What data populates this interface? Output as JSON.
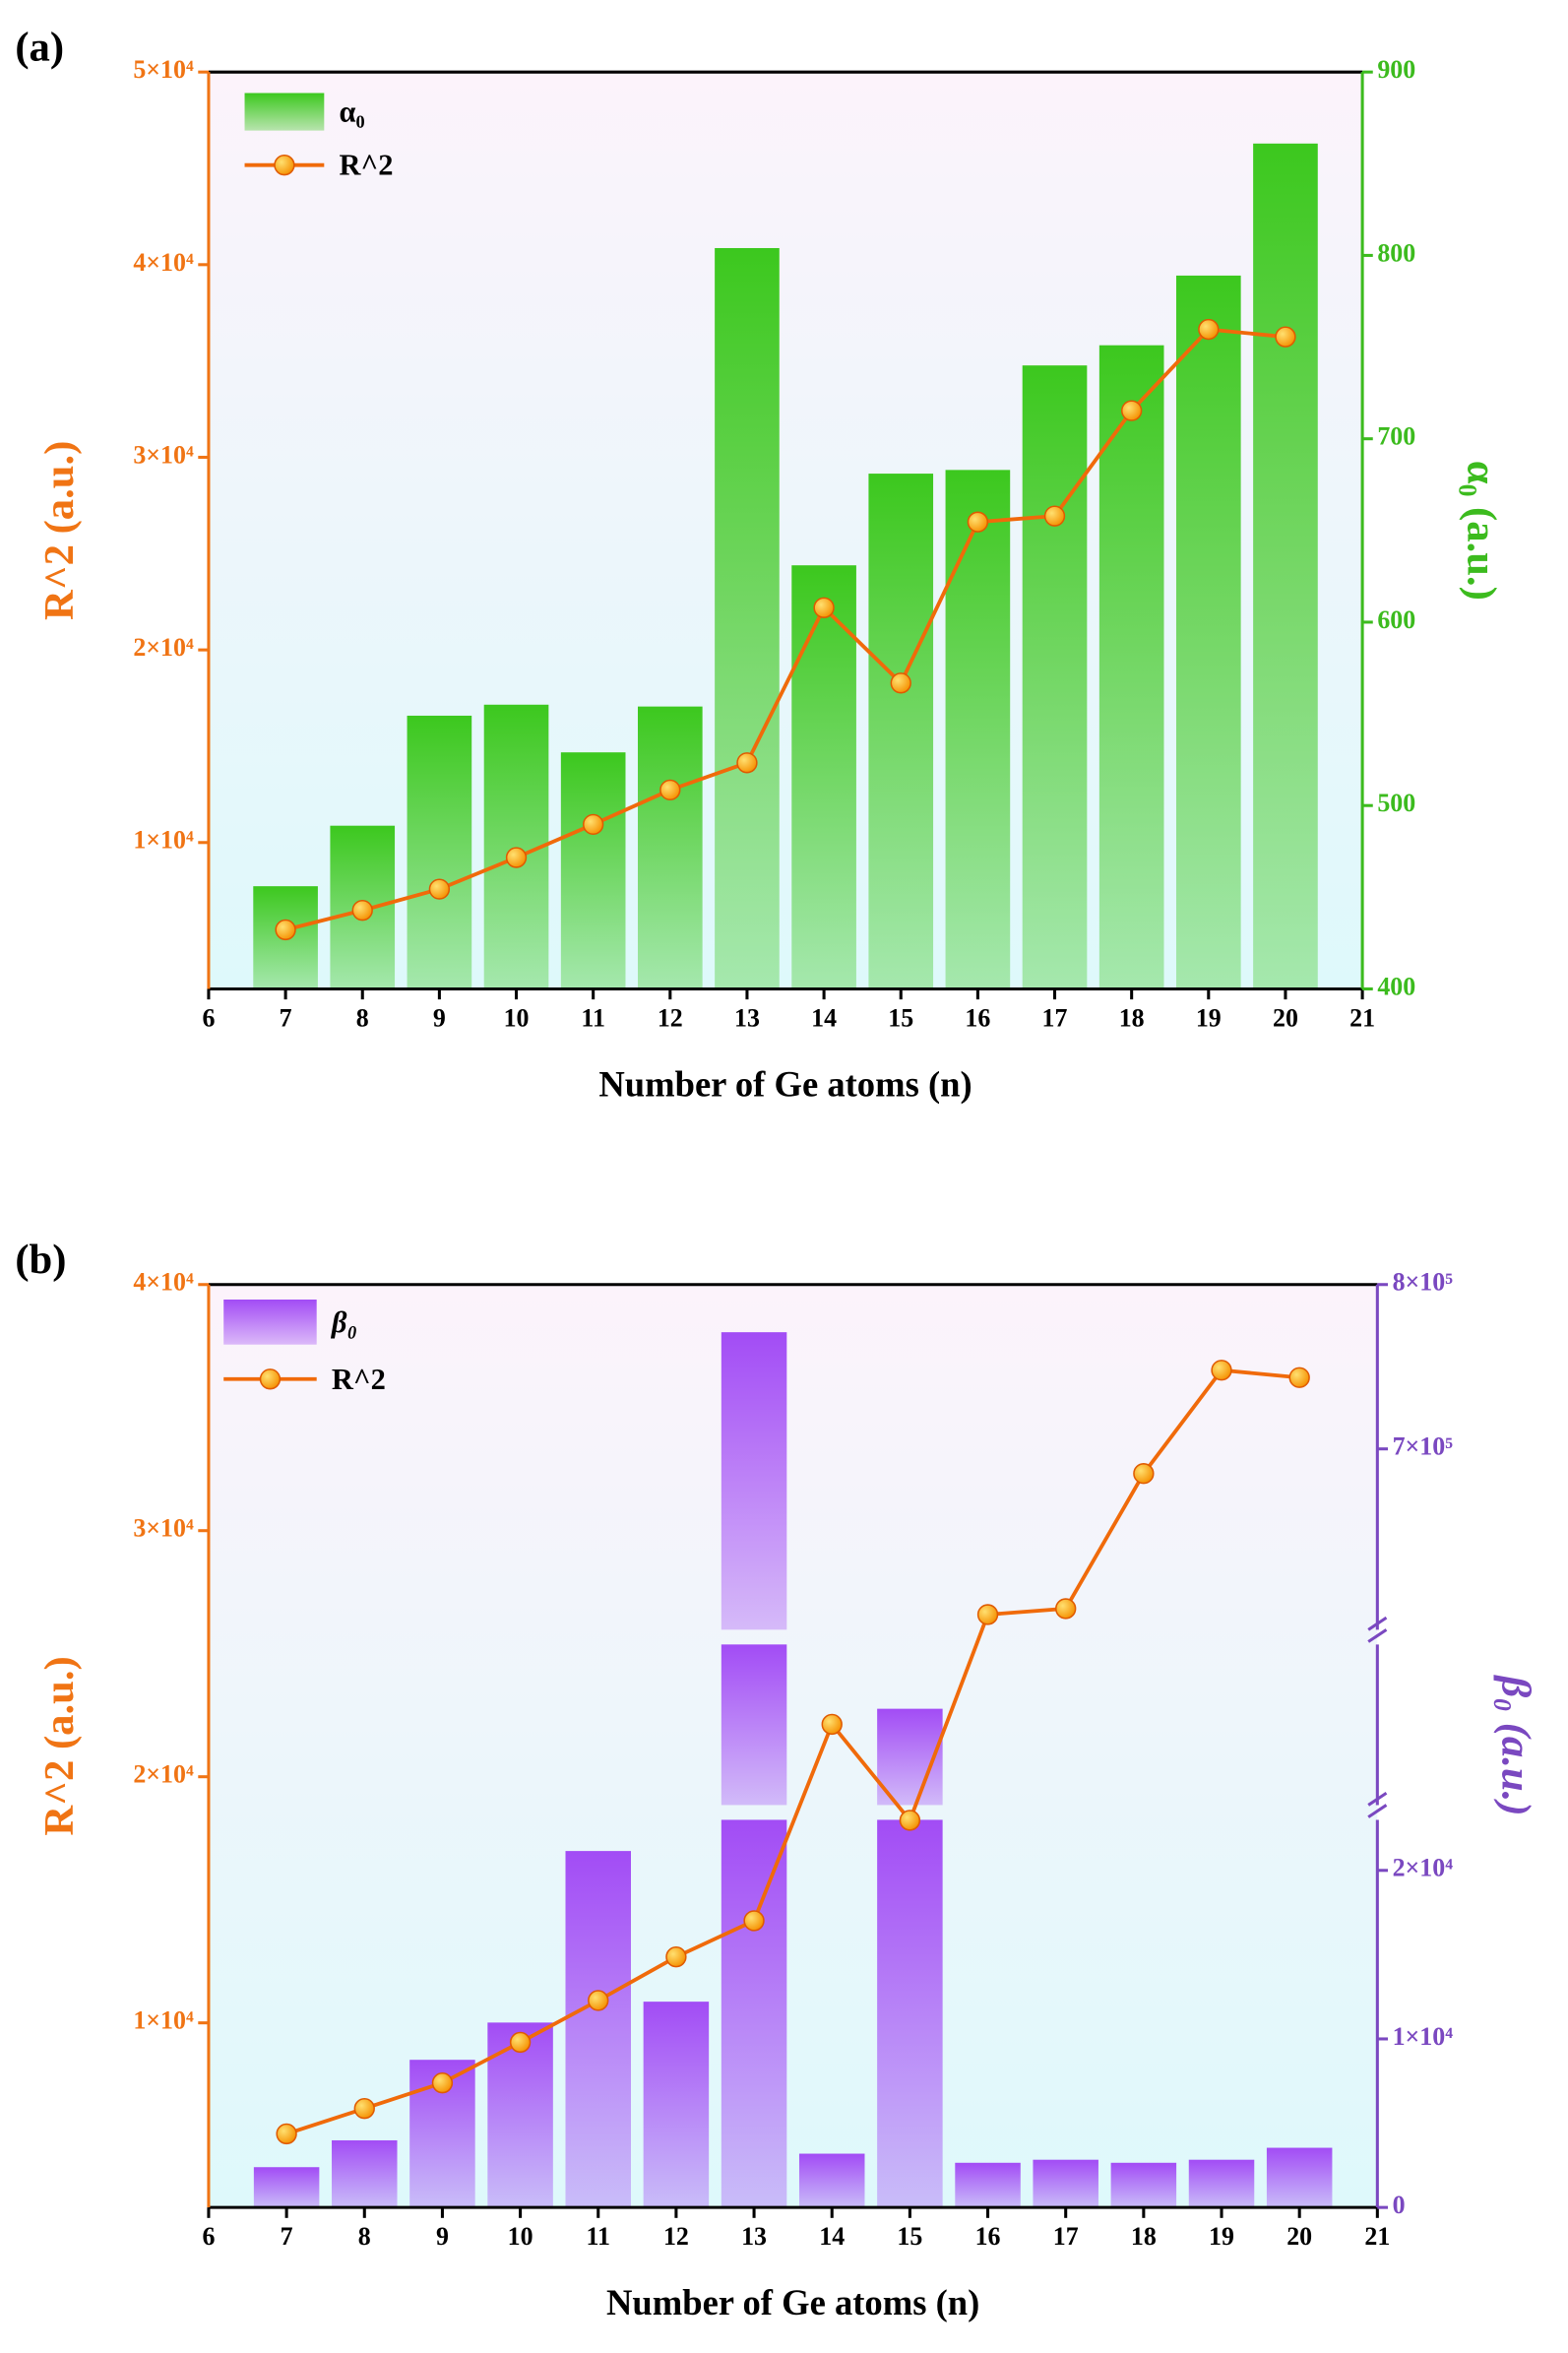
{
  "chart_data": [
    {
      "type": "combo",
      "panel": "(a)",
      "xlabel": "Number of Ge atoms (n)",
      "ylabel": "R^2 (a.u.)",
      "y2label": "α₀ (a.u.)",
      "x": [
        7,
        8,
        9,
        10,
        11,
        12,
        13,
        14,
        15,
        16,
        17,
        18,
        19,
        20
      ],
      "xlim": [
        6,
        21
      ],
      "xticks": [
        6,
        7,
        8,
        9,
        10,
        11,
        12,
        13,
        14,
        15,
        16,
        17,
        18,
        19,
        20,
        21
      ],
      "ylim": [
        2400,
        50000
      ],
      "yticks": [
        {
          "value": 10000,
          "label": "1×10⁴"
        },
        {
          "value": 20000,
          "label": "2×10⁴"
        },
        {
          "value": 30000,
          "label": "3×10⁴"
        },
        {
          "value": 40000,
          "label": "4×10⁴"
        },
        {
          "value": 50000,
          "label": "5×10⁴"
        }
      ],
      "y2lim": [
        400,
        900
      ],
      "y2ticks": [
        400,
        500,
        600,
        700,
        800,
        900
      ],
      "ycolor": "#f07414",
      "y2color": "#3cbb1e",
      "series": [
        {
          "name": "α₀",
          "type": "bar",
          "axis": "y2",
          "color": "#3cc81e",
          "values": [
            456,
            489,
            549,
            555,
            529,
            554,
            804,
            631,
            681,
            683,
            740,
            751,
            789,
            861
          ]
        },
        {
          "name": "R^2",
          "type": "line",
          "axis": "y",
          "color": "#f06a0a",
          "values": [
            5470,
            6480,
            7580,
            9220,
            10940,
            12730,
            14140,
            22190,
            18280,
            26640,
            26950,
            32420,
            36640,
            36250
          ]
        }
      ]
    },
    {
      "type": "combo",
      "panel": "(b)",
      "xlabel": "Number of Ge atoms (n)",
      "ylabel": "R^2 (a.u.)",
      "y2label": "β₀ (a.u.)",
      "x": [
        7,
        8,
        9,
        10,
        11,
        12,
        13,
        14,
        15,
        16,
        17,
        18,
        19,
        20
      ],
      "xlim": [
        6,
        21
      ],
      "xticks": [
        6,
        7,
        8,
        9,
        10,
        11,
        12,
        13,
        14,
        15,
        16,
        17,
        18,
        19,
        20,
        21
      ],
      "ylim": [
        2500,
        40000
      ],
      "yticks": [
        {
          "value": 10000,
          "label": "1×10⁴"
        },
        {
          "value": 20000,
          "label": "2×10⁴"
        },
        {
          "value": 30000,
          "label": "3×10⁴"
        },
        {
          "value": 40000,
          "label": "4×10⁴"
        }
      ],
      "y2lim": [
        0,
        800000
      ],
      "y2breaks": [
        23000,
        590000
      ],
      "y2ticks": [
        0,
        {
          "value": 10000,
          "label": "1×10⁴"
        },
        {
          "value": 20000,
          "label": "2×10⁴"
        },
        {
          "value": 700000,
          "label": "7×10⁵"
        },
        {
          "value": 800000,
          "label": "8×10⁵"
        }
      ],
      "ycolor": "#f07414",
      "y2color": "#7a48c0",
      "series": [
        {
          "name": "β₀",
          "type": "bar",
          "axis": "y2",
          "color": "#a24cf5",
          "values": [
            2390,
            3980,
            8760,
            10970,
            21150,
            12210,
            771000,
            3190,
            363000,
            2650,
            2830,
            2650,
            2830,
            3540
          ]
        },
        {
          "name": "R^2",
          "type": "line",
          "axis": "y",
          "color": "#f06a0a",
          "values": [
            5490,
            6520,
            7560,
            9210,
            10910,
            12680,
            14150,
            22130,
            18230,
            26590,
            26830,
            32320,
            36520,
            36220
          ]
        }
      ]
    }
  ]
}
